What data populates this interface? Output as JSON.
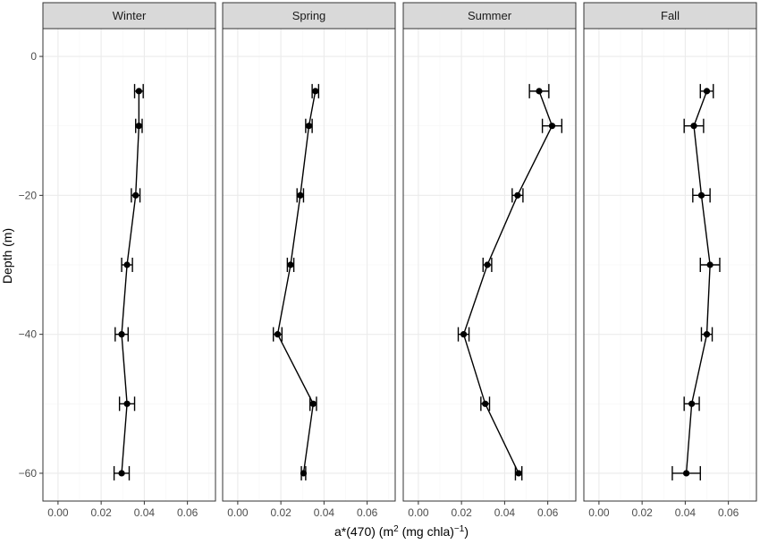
{
  "chart_data": {
    "type": "line",
    "layout": "faceted-panels",
    "facets": [
      "Winter",
      "Spring",
      "Summer",
      "Fall"
    ],
    "xlabel_main": "a*(470) (m",
    "xlabel_sup1": "2",
    "xlabel_mid": " (mg chla)",
    "xlabel_sup2": "−1",
    "xlabel_end": ")",
    "ylabel": "Depth (m)",
    "xlim": [
      -0.007,
      0.073
    ],
    "ylim": [
      -64,
      4
    ],
    "xticks": [
      0.0,
      0.02,
      0.04,
      0.06
    ],
    "xtick_labels": [
      "0.00",
      "0.02",
      "0.04",
      "0.06"
    ],
    "yticks": [
      0,
      -20,
      -40,
      -60
    ],
    "ytick_labels": [
      "0",
      "−20",
      "−40",
      "−60"
    ],
    "depth": [
      -5,
      -10,
      -20,
      -30,
      -40,
      -50,
      -60
    ],
    "series": [
      {
        "facet": "Winter",
        "x": [
          0.0375,
          0.0375,
          0.036,
          0.032,
          0.0295,
          0.032,
          0.0295
        ],
        "err": [
          0.002,
          0.0015,
          0.002,
          0.0025,
          0.003,
          0.0035,
          0.0035
        ]
      },
      {
        "facet": "Spring",
        "x": [
          0.036,
          0.033,
          0.029,
          0.0245,
          0.0185,
          0.035,
          0.0305
        ],
        "err": [
          0.0015,
          0.0015,
          0.0015,
          0.0015,
          0.002,
          0.0015,
          0.001
        ]
      },
      {
        "facet": "Summer",
        "x": [
          0.056,
          0.062,
          0.046,
          0.032,
          0.021,
          0.031,
          0.0465
        ],
        "err": [
          0.0045,
          0.0045,
          0.0025,
          0.002,
          0.0025,
          0.002,
          0.0015
        ]
      },
      {
        "facet": "Fall",
        "x": [
          0.05,
          0.044,
          0.0475,
          0.0515,
          0.05,
          0.043,
          0.0405
        ],
        "err": [
          0.003,
          0.0045,
          0.004,
          0.0045,
          0.0025,
          0.0035,
          0.0065
        ]
      }
    ],
    "grid": true,
    "legend": "none",
    "colors": {
      "line": "#000000",
      "strip_fill": "#d9d9d9",
      "panel_border": "#333333",
      "grid_major": "#ebebeb",
      "grid_minor": "#f5f5f5",
      "tick_text": "#4d4d4d"
    }
  }
}
